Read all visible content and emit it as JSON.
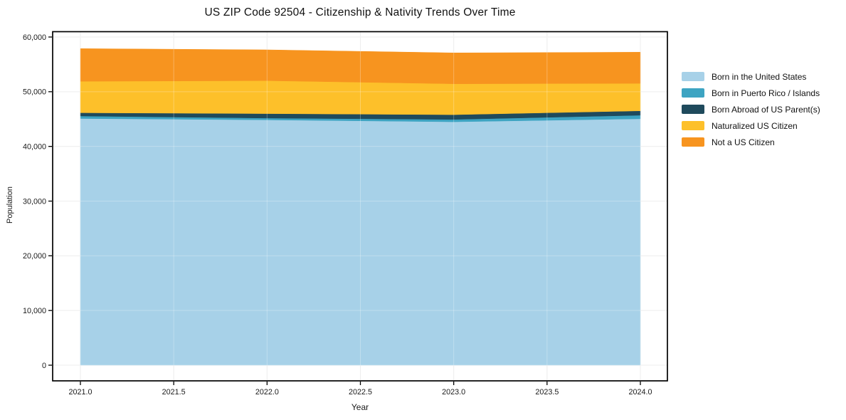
{
  "chart_data": {
    "type": "area",
    "stacked": true,
    "title": "US ZIP Code 92504 - Citizenship & Nativity Trends Over Time",
    "xlabel": "Year",
    "ylabel": "Population",
    "x": [
      2021,
      2022,
      2023,
      2024
    ],
    "series": [
      {
        "name": "Born in the United States",
        "color": "#a7d1e8",
        "values": [
          45100,
          44850,
          44500,
          45050
        ]
      },
      {
        "name": "Born in Puerto Rico / Islands",
        "color": "#3da4c2",
        "values": [
          450,
          320,
          430,
          650
        ]
      },
      {
        "name": "Born Abroad of US Parent(s)",
        "color": "#1f4a5c",
        "values": [
          600,
          820,
          870,
          800
        ]
      },
      {
        "name": "Naturalized US Citizen",
        "color": "#fdc02a",
        "values": [
          5750,
          6030,
          5650,
          5030
        ]
      },
      {
        "name": "Not a US Citizen",
        "color": "#f7941f",
        "values": [
          5980,
          5640,
          5650,
          5700
        ]
      }
    ],
    "x_ticks": [
      2021.0,
      2021.5,
      2022.0,
      2022.5,
      2023.0,
      2023.5,
      2024.0
    ],
    "x_tick_labels": [
      "2021.0",
      "2021.5",
      "2022.0",
      "2022.5",
      "2023.0",
      "2023.5",
      "2024.0"
    ],
    "y_ticks": [
      0,
      10000,
      20000,
      30000,
      40000,
      50000,
      60000
    ],
    "y_tick_labels": [
      "0",
      "10,000",
      "20,000",
      "30,000",
      "40,000",
      "50,000",
      "60,000"
    ],
    "xlim": [
      2020.85,
      2024.15
    ],
    "ylim": [
      -2500,
      61000
    ],
    "grid": true,
    "legend_position": "right"
  }
}
